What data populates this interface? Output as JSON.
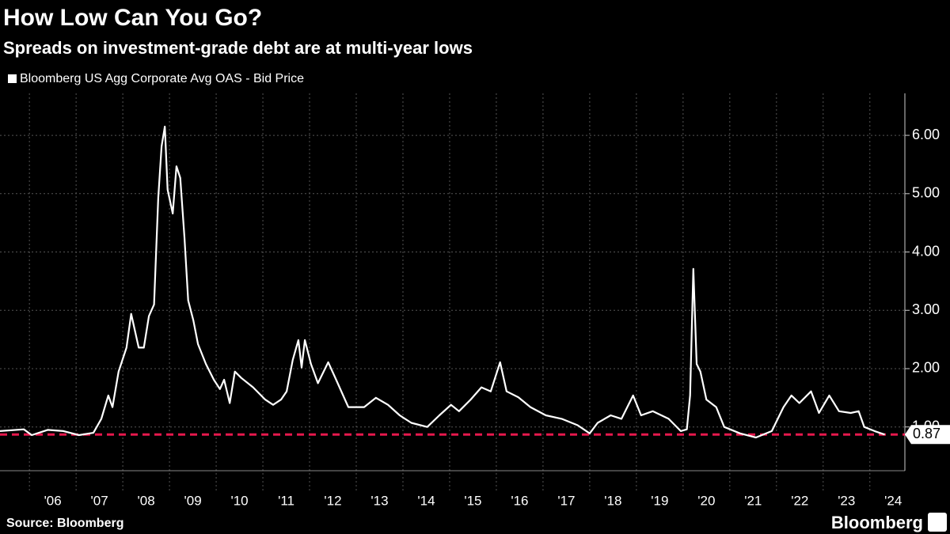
{
  "chart_data": {
    "type": "line",
    "title": "How Low Can You Go?",
    "subtitle": "Spreads on investment-grade debt are at multi-year lows",
    "source": "Source: Bloomberg",
    "brand": "Bloomberg",
    "series": [
      {
        "name": "Bloomberg US Agg Corporate Avg OAS - Bid Price",
        "color": "#ffffff",
        "x": [
          2005.37,
          2005.88,
          2006.05,
          2006.39,
          2006.73,
          2007.06,
          2007.37,
          2007.54,
          2007.69,
          2007.78,
          2007.91,
          2008.08,
          2008.18,
          2008.34,
          2008.45,
          2008.56,
          2008.67,
          2008.76,
          2008.83,
          2008.9,
          2008.96,
          2009.07,
          2009.15,
          2009.23,
          2009.32,
          2009.4,
          2009.51,
          2009.61,
          2009.78,
          2009.95,
          2010.08,
          2010.17,
          2010.29,
          2010.4,
          2010.54,
          2010.79,
          2011.05,
          2011.22,
          2011.39,
          2011.51,
          2011.64,
          2011.76,
          2011.83,
          2011.9,
          2012.03,
          2012.18,
          2012.4,
          2012.57,
          2012.83,
          2013.17,
          2013.42,
          2013.68,
          2013.93,
          2014.18,
          2014.52,
          2014.78,
          2015.03,
          2015.2,
          2015.45,
          2015.68,
          2015.88,
          2016.08,
          2016.22,
          2016.47,
          2016.73,
          2017.06,
          2017.4,
          2017.74,
          2018.0,
          2018.17,
          2018.45,
          2018.68,
          2018.93,
          2019.1,
          2019.35,
          2019.69,
          2019.95,
          2020.08,
          2020.15,
          2020.22,
          2020.29,
          2020.37,
          2020.5,
          2020.71,
          2020.88,
          2021.22,
          2021.56,
          2021.9,
          2022.15,
          2022.32,
          2022.49,
          2022.74,
          2022.91,
          2023.13,
          2023.34,
          2023.59,
          2023.76,
          2023.88,
          2024.1,
          2024.32
        ],
        "values": [
          0.93,
          0.96,
          0.86,
          0.95,
          0.93,
          0.86,
          0.9,
          1.14,
          1.54,
          1.34,
          1.95,
          2.36,
          2.94,
          2.36,
          2.36,
          2.9,
          3.1,
          4.93,
          5.81,
          6.15,
          5.07,
          4.66,
          5.47,
          5.27,
          4.25,
          3.17,
          2.83,
          2.42,
          2.08,
          1.81,
          1.65,
          1.81,
          1.41,
          1.95,
          1.84,
          1.68,
          1.47,
          1.38,
          1.47,
          1.61,
          2.15,
          2.49,
          2.02,
          2.49,
          2.08,
          1.75,
          2.11,
          1.81,
          1.34,
          1.34,
          1.5,
          1.38,
          1.2,
          1.07,
          1.0,
          1.2,
          1.38,
          1.27,
          1.47,
          1.68,
          1.61,
          2.11,
          1.61,
          1.51,
          1.34,
          1.2,
          1.14,
          1.03,
          0.89,
          1.07,
          1.2,
          1.14,
          1.54,
          1.2,
          1.27,
          1.14,
          0.93,
          0.96,
          1.54,
          3.71,
          2.08,
          1.95,
          1.47,
          1.34,
          1.0,
          0.89,
          0.82,
          0.93,
          1.34,
          1.54,
          1.41,
          1.61,
          1.24,
          1.54,
          1.27,
          1.24,
          1.27,
          1.0,
          0.93,
          0.87
        ]
      }
    ],
    "threshold": 0.87,
    "threshold_color": "#e5194d",
    "xlim": [
      2005.37,
      2024.75
    ],
    "ylim": [
      0.25,
      6.72
    ],
    "xticks": [
      {
        "value": 2006,
        "label": "'06"
      },
      {
        "value": 2007,
        "label": "'07"
      },
      {
        "value": 2008,
        "label": "'08"
      },
      {
        "value": 2009,
        "label": "'09"
      },
      {
        "value": 2010,
        "label": "'10"
      },
      {
        "value": 2011,
        "label": "'11"
      },
      {
        "value": 2012,
        "label": "'12"
      },
      {
        "value": 2013,
        "label": "'13"
      },
      {
        "value": 2014,
        "label": "'14"
      },
      {
        "value": 2015,
        "label": "'15"
      },
      {
        "value": 2016,
        "label": "'16"
      },
      {
        "value": 2017,
        "label": "'17"
      },
      {
        "value": 2018,
        "label": "'18"
      },
      {
        "value": 2019,
        "label": "'19"
      },
      {
        "value": 2020,
        "label": "'20"
      },
      {
        "value": 2021,
        "label": "'21"
      },
      {
        "value": 2022,
        "label": "'22"
      },
      {
        "value": 2023,
        "label": "'23"
      },
      {
        "value": 2024,
        "label": "'24"
      }
    ],
    "yticks": [
      {
        "value": 1,
        "label": "1.00"
      },
      {
        "value": 2,
        "label": "2.00"
      },
      {
        "value": 3,
        "label": "3.00"
      },
      {
        "value": 4,
        "label": "4.00"
      },
      {
        "value": 5,
        "label": "5.00"
      },
      {
        "value": 6,
        "label": "6.00"
      }
    ],
    "grid": true
  }
}
